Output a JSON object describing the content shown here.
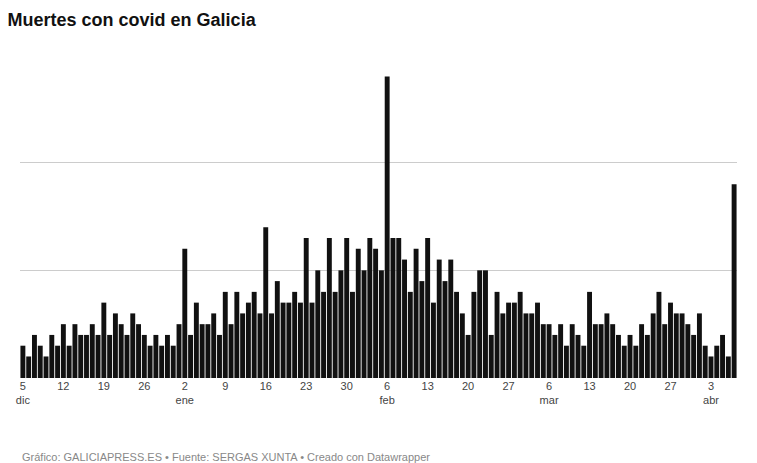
{
  "chart_data": {
    "type": "bar",
    "title": "Muertes con covid en Galicia",
    "annotations": [
      "Gráfico: GALICIAPRESS.ES • Fuente: SERGAS XUNTA • Creado con Datawrapper"
    ],
    "color": "#111111",
    "categories": [
      "5\ndic",
      null,
      null,
      null,
      null,
      null,
      null,
      "12",
      null,
      null,
      null,
      null,
      null,
      null,
      "19",
      null,
      null,
      null,
      null,
      null,
      null,
      "26",
      null,
      null,
      null,
      null,
      null,
      null,
      "2\nene",
      null,
      null,
      null,
      null,
      null,
      null,
      "9",
      null,
      null,
      null,
      null,
      null,
      null,
      "16",
      null,
      null,
      null,
      null,
      null,
      null,
      "23",
      null,
      null,
      null,
      null,
      null,
      null,
      "30",
      null,
      null,
      null,
      null,
      null,
      null,
      "6\nfeb",
      null,
      null,
      null,
      null,
      null,
      null,
      "13",
      null,
      null,
      null,
      null,
      null,
      null,
      "20",
      null,
      null,
      null,
      null,
      null,
      null,
      "27",
      null,
      null,
      null,
      null,
      null,
      null,
      "6\nmar",
      null,
      null,
      null,
      null,
      null,
      null,
      "13",
      null,
      null,
      null,
      null,
      null,
      null,
      "20",
      null,
      null,
      null,
      null,
      null,
      null,
      "27",
      null,
      null,
      null,
      null,
      null,
      null,
      "3\nabr",
      null,
      null,
      null,
      null
    ],
    "values": [
      3,
      2,
      4,
      3,
      2,
      4,
      3,
      5,
      3,
      5,
      4,
      4,
      5,
      4,
      7,
      4,
      6,
      5,
      4,
      6,
      5,
      4,
      3,
      4,
      3,
      4,
      3,
      5,
      12,
      4,
      7,
      5,
      5,
      6,
      4,
      8,
      5,
      8,
      6,
      7,
      8,
      6,
      14,
      6,
      9,
      7,
      7,
      8,
      7,
      13,
      7,
      10,
      8,
      13,
      8,
      10,
      13,
      8,
      12,
      10,
      13,
      12,
      10,
      28,
      13,
      13,
      11,
      8,
      12,
      9,
      13,
      7,
      11,
      9,
      11,
      8,
      6,
      4,
      8,
      10,
      10,
      4,
      8,
      6,
      7,
      7,
      8,
      6,
      6,
      7,
      5,
      5,
      4,
      5,
      3,
      5,
      4,
      3,
      8,
      5,
      5,
      6,
      5,
      4,
      3,
      4,
      3,
      5,
      4,
      6,
      8,
      5,
      7,
      6,
      6,
      5,
      4,
      6,
      3,
      2,
      3,
      4,
      2,
      18
    ],
    "ylim": [
      0,
      30
    ],
    "yticks": [
      0,
      10,
      20,
      30
    ],
    "grid": true,
    "tick_labels": "x"
  }
}
